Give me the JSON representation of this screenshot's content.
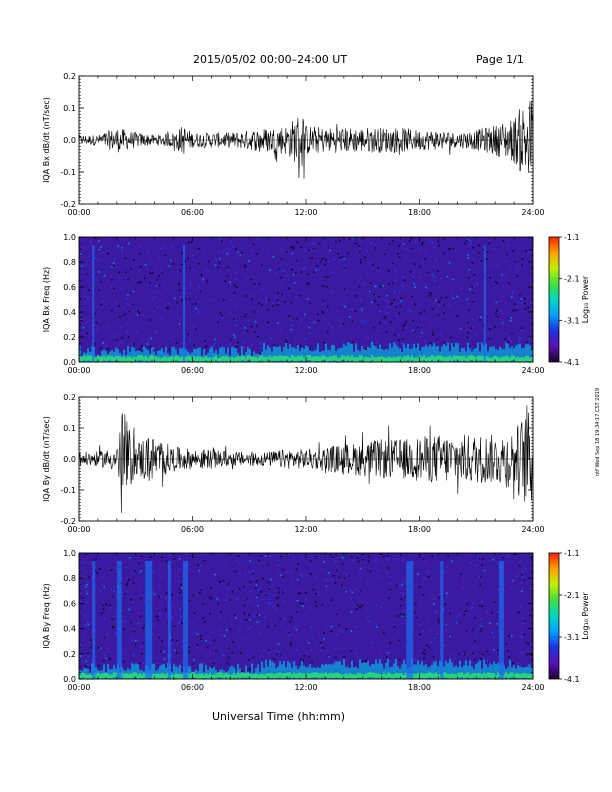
{
  "header": {
    "title": "2015/05/02  00:00–24:00 UT",
    "page": "Page 1/1"
  },
  "footer": {
    "xaxis_title": "Universal Time (hh:mm)",
    "stamp": "ntf Wed Sep 18 19:34:17 CST 2019"
  },
  "colors": {
    "trace": "#000000",
    "spec_bg": "#3a1aa0",
    "colormap": [
      "#1a0030",
      "#5a10b0",
      "#2030e0",
      "#00a0ff",
      "#00d8c0",
      "#40e040",
      "#c0f000",
      "#ffa000",
      "#ff2000"
    ]
  },
  "chart_data": [
    {
      "type": "line",
      "ylabel": "IQA Bx dB/dt (nT/sec)",
      "xlim": [
        0,
        24
      ],
      "ylim": [
        -0.2,
        0.2
      ],
      "xticks": [
        "00:00",
        "06:00",
        "12:00",
        "18:00",
        "24:00"
      ],
      "yticks": [
        "-0.2",
        "-0.1",
        "0.0",
        "0.1",
        "0.2"
      ],
      "x_hours": [
        0,
        1,
        2,
        2.5,
        3,
        4,
        5,
        5.5,
        6,
        7,
        8,
        9,
        10,
        11,
        11.8,
        12,
        13,
        14,
        15,
        16,
        17,
        18,
        19,
        20,
        21,
        22,
        23,
        23.5,
        24
      ],
      "envelope_amp": [
        0.02,
        0.02,
        0.05,
        0.04,
        0.03,
        0.02,
        0.03,
        0.06,
        0.03,
        0.03,
        0.03,
        0.04,
        0.05,
        0.06,
        0.12,
        0.06,
        0.05,
        0.05,
        0.05,
        0.05,
        0.05,
        0.04,
        0.04,
        0.03,
        0.04,
        0.06,
        0.09,
        0.15,
        0.18
      ]
    },
    {
      "type": "heatmap",
      "ylabel": "IQA Bx Freq (Hz)",
      "xlim": [
        0,
        24
      ],
      "ylim": [
        0,
        1.0
      ],
      "xticks": [
        "00:00",
        "06:00",
        "12:00",
        "18:00",
        "24:00"
      ],
      "yticks": [
        "0.0",
        "0.2",
        "0.4",
        "0.6",
        "0.8",
        "1.0"
      ],
      "colorbar": {
        "label": "Log₁₀ Power",
        "ticks": [
          "-1.1",
          "-2.1",
          "-3.1",
          "-4.1"
        ],
        "range": [
          -4.1,
          -1.1
        ]
      },
      "bands_hours": [
        0.7,
        5.5,
        21.4
      ]
    },
    {
      "type": "line",
      "ylabel": "IQA By dB/dt (nT/sec)",
      "xlim": [
        0,
        24
      ],
      "ylim": [
        -0.2,
        0.2
      ],
      "xticks": [
        "00:00",
        "06:00",
        "12:00",
        "18:00",
        "24:00"
      ],
      "yticks": [
        "-0.2",
        "-0.1",
        "0.0",
        "0.1",
        "0.2"
      ],
      "x_hours": [
        0,
        1,
        2,
        2.3,
        3,
        3.5,
        4,
        5,
        6,
        7,
        8,
        9,
        10,
        11,
        12,
        13,
        14,
        15,
        16,
        17,
        18,
        19,
        20,
        21,
        22,
        23,
        23.5,
        24
      ],
      "envelope_amp": [
        0.03,
        0.03,
        0.05,
        0.2,
        0.06,
        0.1,
        0.09,
        0.05,
        0.04,
        0.04,
        0.03,
        0.03,
        0.03,
        0.04,
        0.04,
        0.05,
        0.06,
        0.07,
        0.08,
        0.08,
        0.09,
        0.1,
        0.1,
        0.1,
        0.1,
        0.12,
        0.18,
        0.2
      ]
    },
    {
      "type": "heatmap",
      "ylabel": "IQA By Freq (Hz)",
      "xlim": [
        0,
        24
      ],
      "ylim": [
        0,
        1.0
      ],
      "xticks": [
        "00:00",
        "06:00",
        "12:00",
        "18:00",
        "24:00"
      ],
      "yticks": [
        "0.0",
        "0.2",
        "0.4",
        "0.6",
        "0.8",
        "1.0"
      ],
      "colorbar": {
        "label": "Log₁₀ Power",
        "ticks": [
          "-1.1",
          "-2.1",
          "-3.1",
          "-4.1"
        ],
        "range": [
          -4.1,
          -1.1
        ]
      },
      "bands_hours": [
        0.7,
        2.0,
        3.5,
        4.7,
        5.5,
        17.3,
        19.1,
        22.2
      ]
    }
  ]
}
